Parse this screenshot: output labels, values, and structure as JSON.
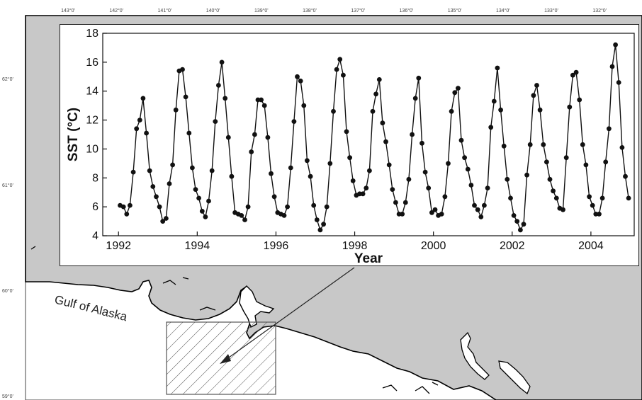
{
  "map": {
    "place_label": "Gulf of Alaska",
    "lon_ticks": [
      "143°0'",
      "142°0'",
      "141°0'",
      "140°0'",
      "139°0'",
      "138°0'",
      "137°0'",
      "136°0'",
      "135°0'",
      "134°0'",
      "133°0'",
      "132°0'"
    ],
    "lat_ticks": [
      "62°0'",
      "61°0'",
      "60°0'",
      "59°0'"
    ],
    "colors": {
      "land": "#c8c8c8",
      "water": "#ffffff",
      "coast": "#000000"
    }
  },
  "chart_data": {
    "type": "line",
    "xlabel": "Year",
    "ylabel": "SST (°C)",
    "xlim": [
      1991.6,
      2005.1
    ],
    "ylim": [
      4,
      18
    ],
    "x_ticks": [
      1992,
      1994,
      1996,
      1998,
      2000,
      2002,
      2004
    ],
    "y_ticks": [
      4,
      6,
      8,
      10,
      12,
      14,
      16,
      18
    ],
    "grid": false,
    "marker": "filled-circle",
    "series": [
      {
        "start": "1992-01",
        "frequency": "monthly",
        "values": [
          6.1,
          6.0,
          5.5,
          6.1,
          8.4,
          11.4,
          12.0,
          13.5,
          11.1,
          8.5,
          7.4,
          6.7,
          6.0,
          5.0,
          5.2,
          7.6,
          8.9,
          12.7,
          15.4,
          15.5,
          13.6,
          11.1,
          8.7,
          7.2,
          6.6,
          5.7,
          5.3,
          6.4,
          8.5,
          11.9,
          14.4,
          16.0,
          13.5,
          10.8,
          8.1,
          5.6,
          5.5,
          5.4,
          5.1,
          6.0,
          9.8,
          11.0,
          13.4,
          13.4,
          13.0,
          10.8,
          8.3,
          6.7,
          5.6,
          5.5,
          5.4,
          6.0,
          8.7,
          11.9,
          15.0,
          14.7,
          13.0,
          9.2,
          8.1,
          6.1,
          5.1,
          4.4,
          4.8,
          6.0,
          9.0,
          12.6,
          15.5,
          16.2,
          15.1,
          11.2,
          9.4,
          7.8,
          6.8,
          6.9,
          6.9,
          7.3,
          8.5,
          12.6,
          13.8,
          14.8,
          11.8,
          10.5,
          8.9,
          7.2,
          6.3,
          5.5,
          5.5,
          6.3,
          7.9,
          11.0,
          13.5,
          14.9,
          10.4,
          8.4,
          7.3,
          5.6,
          5.8,
          5.4,
          5.5,
          6.7,
          9.0,
          12.6,
          13.9,
          14.2,
          10.6,
          9.4,
          8.6,
          7.5,
          6.1,
          5.8,
          5.3,
          6.1,
          7.3,
          11.5,
          13.3,
          15.6,
          12.7,
          10.2,
          7.9,
          6.6,
          5.4,
          5.0,
          4.4,
          4.8,
          8.2,
          10.3,
          13.7,
          14.4,
          12.7,
          10.3,
          9.1,
          7.9,
          7.1,
          6.6,
          5.9,
          5.8,
          9.4,
          12.9,
          15.1,
          15.3,
          13.4,
          10.3,
          8.9,
          6.7,
          6.1,
          5.5,
          5.5,
          6.6,
          9.1,
          11.4,
          15.7,
          17.2,
          14.6,
          10.1,
          8.1,
          6.6
        ]
      }
    ]
  }
}
